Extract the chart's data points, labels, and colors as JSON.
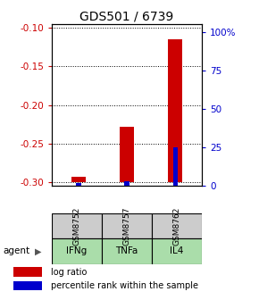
{
  "title": "GDS501 / 6739",
  "samples": [
    "GSM8752",
    "GSM8757",
    "GSM8762"
  ],
  "agents": [
    "IFNg",
    "TNFa",
    "IL4"
  ],
  "log_ratio": [
    -0.293,
    -0.228,
    -0.115
  ],
  "percentile": [
    2,
    3,
    25
  ],
  "bar_base": -0.3,
  "ylim_left": [
    -0.305,
    -0.095
  ],
  "ylim_right": [
    0,
    105
  ],
  "left_ticks": [
    -0.3,
    -0.25,
    -0.2,
    -0.15,
    -0.1
  ],
  "right_ticks": [
    0,
    25,
    50,
    75,
    100
  ],
  "right_tick_labels": [
    "0",
    "25",
    "50",
    "75",
    "100%"
  ],
  "left_color": "#cc0000",
  "right_color": "#0000cc",
  "bar_red": "#cc0000",
  "bar_blue": "#0000cc",
  "gray_bg": "#cccccc",
  "green_bg": "#aaddaa",
  "legend_red": "log ratio",
  "legend_blue": "percentile rank within the sample"
}
